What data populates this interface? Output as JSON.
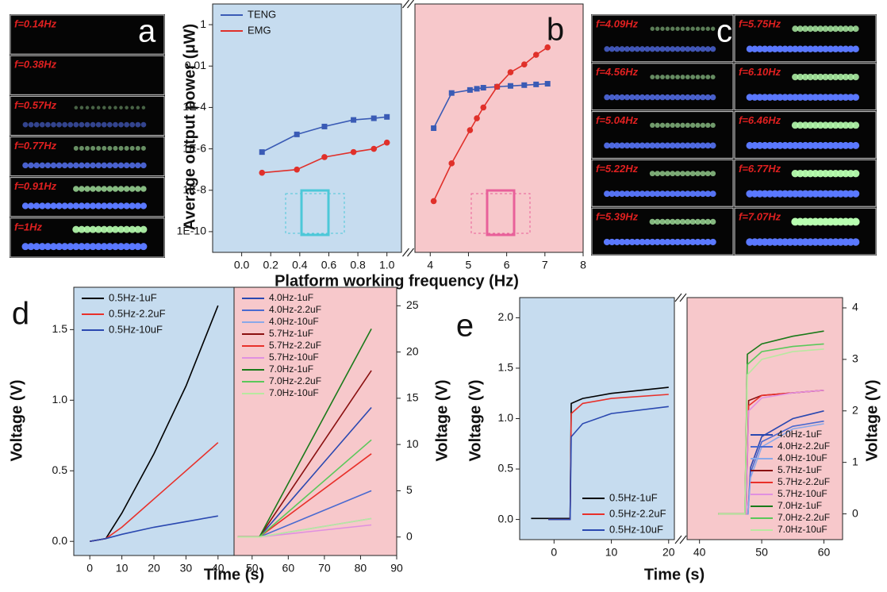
{
  "photos": [
    {
      "letter": "a",
      "labels": [
        "f=0.14Hz",
        "f=0.38Hz",
        "f=0.57Hz",
        "f=0.77Hz",
        "f=0.91Hz",
        "f=1Hz"
      ]
    },
    {
      "letter": "c",
      "labels": [
        "f=4.09Hz",
        "f=4.56Hz",
        "f=5.04Hz",
        "f=5.22Hz",
        "f=5.39Hz",
        "f=5.75Hz",
        "f=6.10Hz",
        "f=6.46Hz",
        "f=6.77Hz",
        "f=7.07Hz"
      ]
    }
  ],
  "chart_data": [
    {
      "type": "line",
      "panel_label": "b",
      "xlabel": "Platform working frequency (Hz)",
      "ylabel": "Average output power (μW)",
      "log_y": true,
      "ylim": [
        1e-11,
        10
      ],
      "yticks": [
        1,
        0.01,
        {
          "value": 0.0001,
          "label": "1E-4"
        },
        {
          "value": 1e-06,
          "label": "1E-6"
        },
        {
          "value": 1e-08,
          "label": "1E-8"
        },
        {
          "value": 1e-10,
          "label": "1E-10"
        }
      ],
      "subplots": [
        {
          "xlim": [
            -0.2,
            1.1
          ],
          "background": "#c6dcef",
          "legend": "upper left",
          "xticks": [
            {
              "value": 0,
              "label": "0.0"
            },
            0.2,
            0.4,
            0.6,
            0.8,
            {
              "value": 1,
              "label": "1.0"
            }
          ],
          "series": [
            {
              "name": "TENG",
              "color": "#3a5bb5",
              "marker": "square",
              "x": [
                0.14,
                0.38,
                0.57,
                0.77,
                0.91,
                1
              ],
              "values": [
                7e-07,
                5e-06,
                1.2e-05,
                2.5e-05,
                3e-05,
                3.5e-05
              ]
            },
            {
              "name": "EMG",
              "color": "#e0302a",
              "marker": "circle",
              "x": [
                0.14,
                0.38,
                0.57,
                0.77,
                0.91,
                1
              ],
              "values": [
                7e-08,
                1e-07,
                4e-07,
                7e-07,
                1e-06,
                2e-06
              ]
            }
          ]
        },
        {
          "xlim": [
            3.6,
            8
          ],
          "background": "#f7c8cb",
          "xticks": [
            4,
            5,
            6,
            7,
            8
          ],
          "series": [
            {
              "color": "#3a5bb5",
              "marker": "square",
              "x": [
                4.09,
                4.56,
                5.04,
                5.22,
                5.39,
                5.75,
                6.1,
                6.46,
                6.77,
                7.07
              ],
              "values": [
                1e-05,
                0.0005,
                0.0007,
                0.0008,
                0.0009,
                0.001,
                0.0011,
                0.0012,
                0.0013,
                0.0014
              ]
            },
            {
              "color": "#e0302a",
              "marker": "circle",
              "x": [
                4.09,
                4.56,
                5.04,
                5.22,
                5.39,
                5.75,
                6.1,
                6.46,
                6.77,
                7.07
              ],
              "values": [
                3e-09,
                2e-07,
                8e-06,
                3e-05,
                0.0001,
                0.001,
                0.005,
                0.012,
                0.035,
                0.08
              ]
            }
          ]
        }
      ]
    },
    {
      "type": "line",
      "panel_label": "d",
      "xlabel": "Time (s)",
      "ylabel": "Voltage (V)",
      "y2label": "Voltage (V)",
      "ylim": [
        -0.1,
        1.8
      ],
      "yticks": [
        {
          "value": 0,
          "label": "0.0"
        },
        {
          "value": 0.5,
          "label": "0.5"
        },
        {
          "value": 1,
          "label": "1.0"
        },
        {
          "value": 1.5,
          "label": "1.5"
        }
      ],
      "y2lim": [
        -2,
        27
      ],
      "y2ticks": [
        0,
        5,
        10,
        15,
        20,
        25
      ],
      "subplots": [
        {
          "xlim": [
            -5,
            45
          ],
          "background": "#c6dcef",
          "legend": "upper left",
          "xticks": [
            0,
            10,
            20,
            30,
            40
          ],
          "series": [
            {
              "name": "0.5Hz-1uF",
              "color": "#000000",
              "x": [
                0,
                5,
                10,
                20,
                30,
                40
              ],
              "values": [
                0,
                0.02,
                0.2,
                0.62,
                1.1,
                1.67
              ]
            },
            {
              "name": "0.5Hz-2.2uF",
              "color": "#e8302a",
              "x": [
                0,
                5,
                10,
                20,
                30,
                40
              ],
              "values": [
                0,
                0.02,
                0.1,
                0.3,
                0.5,
                0.7
              ]
            },
            {
              "name": "0.5Hz-10uF",
              "color": "#2a48b0",
              "x": [
                0,
                5,
                10,
                20,
                30,
                40
              ],
              "values": [
                0,
                0.02,
                0.05,
                0.1,
                0.14,
                0.18
              ]
            }
          ]
        },
        {
          "xlim": [
            45,
            90
          ],
          "background": "#f7c8cb",
          "axis": "y2",
          "legend": "upper left",
          "xticks": [
            50,
            60,
            70,
            80,
            90
          ],
          "series": [
            {
              "name": "4.0Hz-1uF",
              "color": "#2a48b0",
              "x": [
                46,
                52,
                83
              ],
              "values": [
                0,
                0,
                14
              ]
            },
            {
              "name": "4.0Hz-2.2uF",
              "color": "#4a6ad0",
              "x": [
                46,
                52,
                83
              ],
              "values": [
                0,
                0,
                5
              ]
            },
            {
              "name": "4.0Hz-10uF",
              "color": "#8aa8e8",
              "x": [
                46,
                52,
                83
              ],
              "values": [
                0,
                0,
                2
              ]
            },
            {
              "name": "5.7Hz-1uF",
              "color": "#8a1010",
              "x": [
                46,
                52,
                83
              ],
              "values": [
                0,
                0,
                18
              ]
            },
            {
              "name": "5.7Hz-2.2uF",
              "color": "#e8302a",
              "x": [
                46,
                52,
                83
              ],
              "values": [
                0,
                0,
                9
              ]
            },
            {
              "name": "5.7Hz-10uF",
              "color": "#e090e0",
              "x": [
                46,
                52,
                83
              ],
              "values": [
                0,
                0,
                1.3
              ]
            },
            {
              "name": "7.0Hz-1uF",
              "color": "#1a7a1a",
              "x": [
                46,
                52,
                83
              ],
              "values": [
                0,
                0,
                22.5
              ]
            },
            {
              "name": "7.0Hz-2.2uF",
              "color": "#5ac85a",
              "x": [
                46,
                52,
                83
              ],
              "values": [
                0,
                0,
                10.5
              ]
            },
            {
              "name": "7.0Hz-10uF",
              "color": "#b8e8a0",
              "x": [
                46,
                52,
                83
              ],
              "values": [
                0,
                0,
                2
              ]
            }
          ]
        }
      ]
    },
    {
      "type": "line",
      "panel_label": "e",
      "xlabel": "Time (s)",
      "ylabel": "Voltage (V)",
      "y2label": "Voltage (V)",
      "ylim": [
        -0.2,
        2.2
      ],
      "yticks": [
        {
          "value": 0,
          "label": "0.0"
        },
        {
          "value": 0.5,
          "label": "0.5"
        },
        {
          "value": 1,
          "label": "1.0"
        },
        {
          "value": 1.5,
          "label": "1.5"
        },
        {
          "value": 2,
          "label": "2.0"
        }
      ],
      "y2lim": [
        -0.5,
        4.2
      ],
      "y2ticks": [
        0,
        1,
        2,
        3,
        4
      ],
      "subplots": [
        {
          "xlim": [
            -6,
            21
          ],
          "background": "#c6dcef",
          "legend": "lower right",
          "xticks": [
            0,
            10,
            20
          ],
          "series": [
            {
              "name": "0.5Hz-1uF",
              "color": "#000000",
              "x": [
                -4,
                2.8,
                3,
                5,
                10,
                20
              ],
              "values": [
                0.01,
                0.01,
                1.15,
                1.2,
                1.25,
                1.31
              ]
            },
            {
              "name": "0.5Hz-2.2uF",
              "color": "#e8302a",
              "x": [
                -1,
                2.8,
                3,
                5,
                10,
                20
              ],
              "values": [
                0,
                0,
                1.05,
                1.15,
                1.2,
                1.24
              ]
            },
            {
              "name": "0.5Hz-10uF",
              "color": "#2a48b0",
              "x": [
                -1,
                2.8,
                3,
                5,
                10,
                20
              ],
              "values": [
                0,
                0,
                0.82,
                0.95,
                1.05,
                1.12
              ]
            }
          ]
        },
        {
          "xlim": [
            38,
            63
          ],
          "background": "#f7c8cb",
          "axis": "y2",
          "legend": "lower right",
          "xticks": [
            40,
            50,
            60
          ],
          "series": [
            {
              "name": "4.0Hz-1uF",
              "color": "#2a48b0",
              "x": [
                43,
                47.8,
                48.2,
                50,
                55,
                60
              ],
              "values": [
                0,
                0,
                0.9,
                1.5,
                1.85,
                2.0
              ]
            },
            {
              "name": "4.0Hz-2.2uF",
              "color": "#4a6ad0",
              "x": [
                43,
                47.8,
                48.2,
                50,
                55,
                60
              ],
              "values": [
                0,
                0,
                0.8,
                1.4,
                1.7,
                1.8
              ]
            },
            {
              "name": "4.0Hz-10uF",
              "color": "#8aa8e8",
              "x": [
                43,
                47.8,
                48.2,
                50,
                55,
                60
              ],
              "values": [
                0,
                0,
                0.7,
                1.3,
                1.65,
                1.75
              ]
            },
            {
              "name": "5.7Hz-1uF",
              "color": "#8a1010",
              "x": [
                43,
                47.5,
                47.9,
                50,
                55,
                60
              ],
              "values": [
                0,
                0,
                2.2,
                2.3,
                2.35,
                2.4
              ]
            },
            {
              "name": "5.7Hz-2.2uF",
              "color": "#e8302a",
              "x": [
                43,
                47.5,
                47.9,
                50,
                55,
                60
              ],
              "values": [
                0,
                0,
                2.1,
                2.3,
                2.35,
                2.4
              ]
            },
            {
              "name": "5.7Hz-10uF",
              "color": "#e090e0",
              "x": [
                43,
                47.5,
                47.9,
                50,
                55,
                60
              ],
              "values": [
                0,
                0,
                2.0,
                2.25,
                2.35,
                2.4
              ]
            },
            {
              "name": "7.0Hz-1uF",
              "color": "#1a7a1a",
              "x": [
                43,
                47.3,
                47.7,
                50,
                55,
                60
              ],
              "values": [
                0,
                0,
                3.1,
                3.3,
                3.45,
                3.55
              ]
            },
            {
              "name": "7.0Hz-2.2uF",
              "color": "#5ac85a",
              "x": [
                43,
                47.3,
                47.7,
                50,
                55,
                60
              ],
              "values": [
                0,
                0,
                2.9,
                3.15,
                3.25,
                3.3
              ]
            },
            {
              "name": "7.0Hz-10uF",
              "color": "#b8e8a0",
              "x": [
                43,
                47.3,
                47.7,
                50,
                55,
                60
              ],
              "values": [
                0,
                0,
                2.7,
                3.0,
                3.15,
                3.2
              ]
            }
          ]
        }
      ]
    }
  ]
}
